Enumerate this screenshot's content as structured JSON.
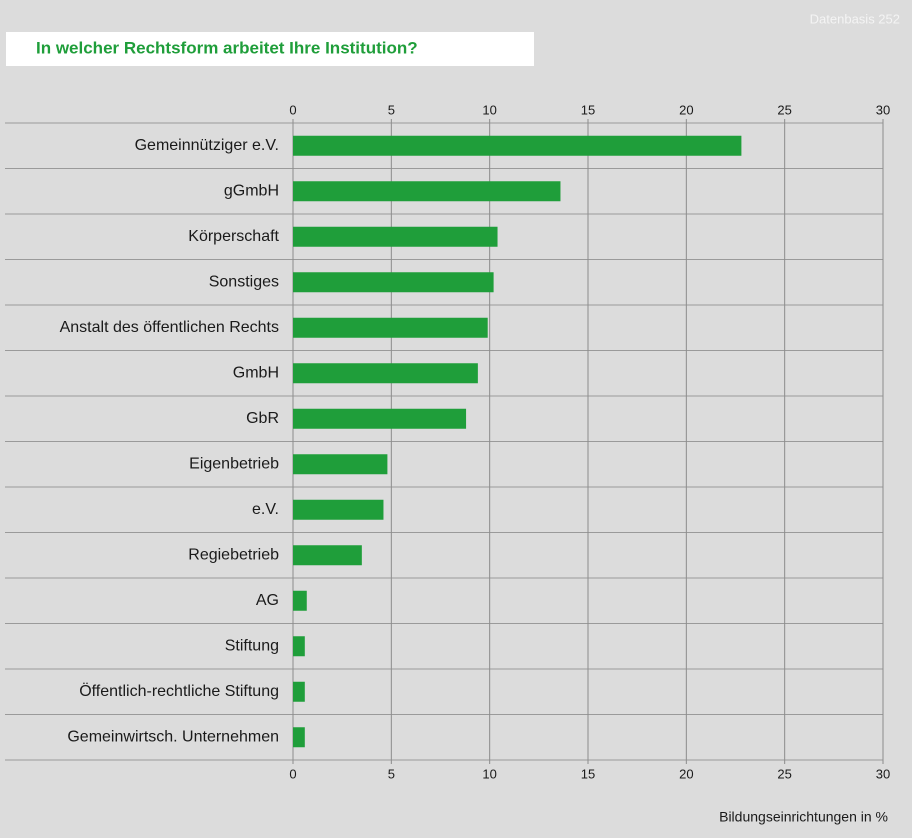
{
  "chart_data": {
    "type": "bar",
    "orientation": "horizontal",
    "title": "In welcher Rechtsform arbeitet Ihre Institution?",
    "subtitle": "Datenbasis 252",
    "xlabel": "Bildungseinrichtungen in %",
    "categories": [
      "Gemeinnütziger e.V.",
      "gGmbH",
      "Körperschaft",
      "Sonstiges",
      "Anstalt des öffentlichen Rechts",
      "GmbH",
      "GbR",
      "Eigenbetrieb",
      "e.V.",
      "Regiebetrieb",
      "AG",
      "Stiftung",
      "Öffentlich-rechtliche Stiftung",
      "Gemeinwirtsch. Unternehmen"
    ],
    "values": [
      22.8,
      13.6,
      10.4,
      10.2,
      9.9,
      9.4,
      8.8,
      4.8,
      4.6,
      3.5,
      0.7,
      0.6,
      0.6,
      0.6
    ],
    "color": "#1f9e3a",
    "xlim": [
      0,
      30
    ],
    "xticks": [
      0,
      5,
      10,
      15,
      20,
      25,
      30
    ],
    "grid": true
  }
}
